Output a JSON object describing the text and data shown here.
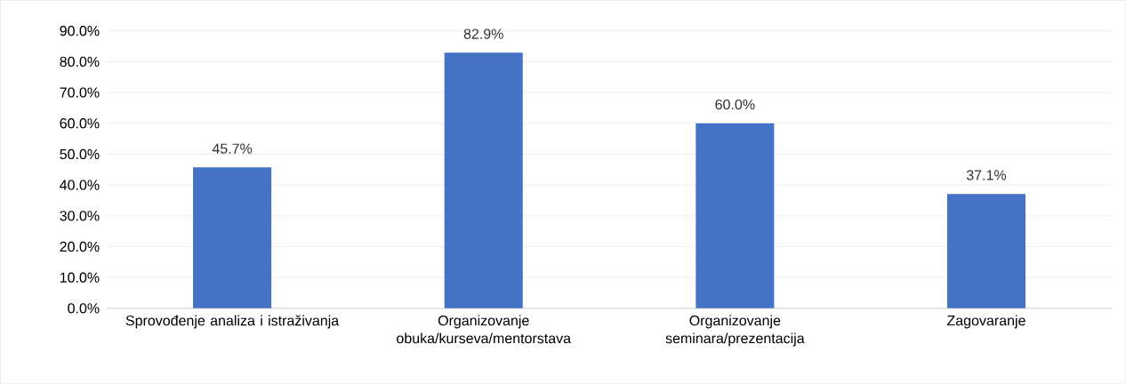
{
  "chart_data": {
    "type": "bar",
    "categories": [
      "Sprovođenje analiza i istraživanja",
      "Organizovanje obuka/kurseva/mentorstava",
      "Organizovanje seminara/prezentacija",
      "Zagovaranje"
    ],
    "values": [
      45.7,
      82.9,
      60.0,
      37.1
    ],
    "value_labels": [
      "45.7%",
      "82.9%",
      "60.0%",
      "37.1%"
    ],
    "color": "#4472c4",
    "ylim": [
      0,
      90
    ],
    "yticks": [
      {
        "value": 0,
        "label": "0.0%"
      },
      {
        "value": 10,
        "label": "10.0%"
      },
      {
        "value": 20,
        "label": "20.0%"
      },
      {
        "value": 30,
        "label": "30.0%"
      },
      {
        "value": 40,
        "label": "40.0%"
      },
      {
        "value": 50,
        "label": "50.0%"
      },
      {
        "value": 60,
        "label": "60.0%"
      },
      {
        "value": 70,
        "label": "70.0%"
      },
      {
        "value": 80,
        "label": "80.0%"
      },
      {
        "value": 90,
        "label": "90.0%"
      }
    ],
    "grid": "y"
  }
}
